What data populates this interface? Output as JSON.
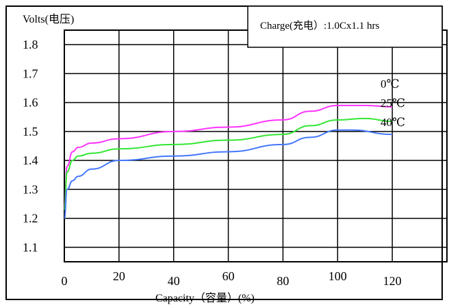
{
  "chart_data": {
    "type": "line",
    "ylabel": "Volts(电压)",
    "xlabel": "Capacity（容量）(%)",
    "annotation": "Charge(充电）:1.0Cx1.1 hrs",
    "x_ticks": [
      "0",
      "20",
      "40",
      "60",
      "80",
      "100",
      "120"
    ],
    "y_ticks": [
      "1.8",
      "1.7",
      "1.6",
      "1.5",
      "1.4",
      "1.3",
      "1.2",
      "1.1"
    ],
    "xlim": [
      0,
      140
    ],
    "ylim": [
      1.05,
      1.85
    ],
    "grid": true,
    "series": [
      {
        "name": "0℃",
        "color": "#ff33ff",
        "points": [
          [
            0,
            1.24
          ],
          [
            1,
            1.38
          ],
          [
            3,
            1.43
          ],
          [
            5,
            1.445
          ],
          [
            10,
            1.46
          ],
          [
            20,
            1.475
          ],
          [
            40,
            1.5
          ],
          [
            60,
            1.515
          ],
          [
            80,
            1.54
          ],
          [
            90,
            1.57
          ],
          [
            100,
            1.59
          ],
          [
            110,
            1.59
          ],
          [
            120,
            1.585
          ]
        ]
      },
      {
        "name": "25℃",
        "color": "#33e633",
        "points": [
          [
            0,
            1.23
          ],
          [
            1,
            1.36
          ],
          [
            3,
            1.4
          ],
          [
            5,
            1.415
          ],
          [
            10,
            1.425
          ],
          [
            20,
            1.44
          ],
          [
            40,
            1.455
          ],
          [
            60,
            1.47
          ],
          [
            80,
            1.49
          ],
          [
            90,
            1.52
          ],
          [
            100,
            1.54
          ],
          [
            110,
            1.545
          ],
          [
            120,
            1.535
          ]
        ]
      },
      {
        "name": "40℃",
        "color": "#4477ff",
        "points": [
          [
            0,
            1.2
          ],
          [
            1,
            1.3
          ],
          [
            3,
            1.33
          ],
          [
            5,
            1.345
          ],
          [
            10,
            1.37
          ],
          [
            20,
            1.4
          ],
          [
            40,
            1.415
          ],
          [
            60,
            1.43
          ],
          [
            80,
            1.455
          ],
          [
            90,
            1.48
          ],
          [
            100,
            1.505
          ],
          [
            105,
            1.505
          ],
          [
            120,
            1.49
          ]
        ]
      }
    ]
  }
}
